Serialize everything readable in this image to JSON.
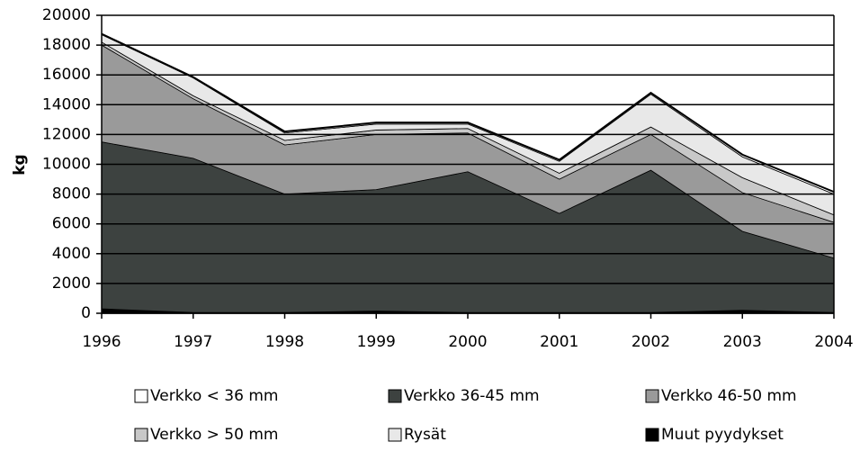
{
  "chart_data": {
    "type": "stacked_area",
    "y_label": "kg",
    "x": [
      1996,
      1997,
      1998,
      1999,
      2000,
      2001,
      2002,
      2003,
      2004
    ],
    "xticks": [
      1996,
      1997,
      1998,
      1999,
      2000,
      2001,
      2002,
      2003,
      2004
    ],
    "ylim": [
      0,
      20000
    ],
    "yticks": [
      0,
      2000,
      4000,
      6000,
      8000,
      10000,
      12000,
      14000,
      16000,
      18000,
      20000
    ],
    "grid": true,
    "legend": "bottom",
    "series": [
      {
        "name": "Muut pyydykset",
        "color": "#000000",
        "values": [
          300,
          50,
          50,
          150,
          50,
          50,
          50,
          200,
          50
        ]
      },
      {
        "name": "Verkko 36-45 mm",
        "color": "#3d4240",
        "values": [
          11200,
          10350,
          7950,
          8150,
          9450,
          6650,
          9550,
          5300,
          3650
        ]
      },
      {
        "name": "Verkko 46-50 mm",
        "color": "#9a9a9a",
        "values": [
          6500,
          4000,
          3300,
          3700,
          2600,
          2300,
          2400,
          2600,
          2400
        ]
      },
      {
        "name": "Verkko > 50 mm",
        "color": "#c8c8c8",
        "values": [
          200,
          200,
          300,
          300,
          300,
          400,
          500,
          1000,
          500
        ]
      },
      {
        "name": "Rysät",
        "color": "#e8e8e8",
        "values": [
          500,
          1200,
          500,
          400,
          300,
          800,
          2200,
          1400,
          1400
        ]
      },
      {
        "name": "Verkko < 36 mm",
        "color": "#ffffff",
        "values": [
          50,
          50,
          100,
          100,
          100,
          100,
          100,
          150,
          150
        ]
      }
    ],
    "legend_order": [
      5,
      1,
      2,
      3,
      4,
      0
    ]
  }
}
